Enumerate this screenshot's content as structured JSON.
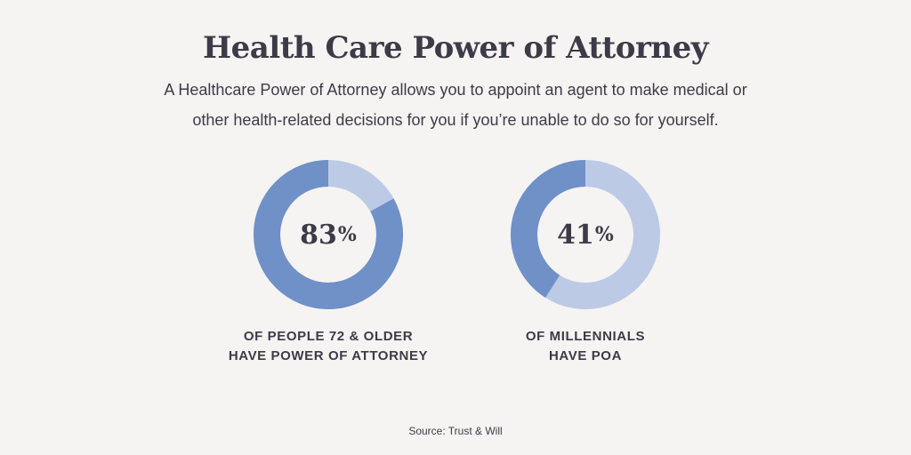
{
  "header": {
    "title": "Health Care Power of Attorney",
    "subtitle": "A Healthcare Power of Attorney allows you to appoint an agent to make medical or other health-related decisions for you if you’re unable to do so for yourself."
  },
  "chart_data": [
    {
      "type": "pie",
      "value": 83,
      "value_label": "83",
      "unit": "%",
      "caption_line1": "OF PEOPLE 72 & OLDER",
      "caption_line2": "HAVE POWER OF ATTORNEY",
      "colors": {
        "filled": "#7090c8",
        "remaining": "#bccae6"
      }
    },
    {
      "type": "pie",
      "value": 41,
      "value_label": "41",
      "unit": "%",
      "caption_line1": "OF MILLENNIALS",
      "caption_line2": "HAVE POA",
      "colors": {
        "filled": "#7090c8",
        "remaining": "#bccae6"
      }
    }
  ],
  "footer": {
    "source": "Source: Trust & Will"
  }
}
